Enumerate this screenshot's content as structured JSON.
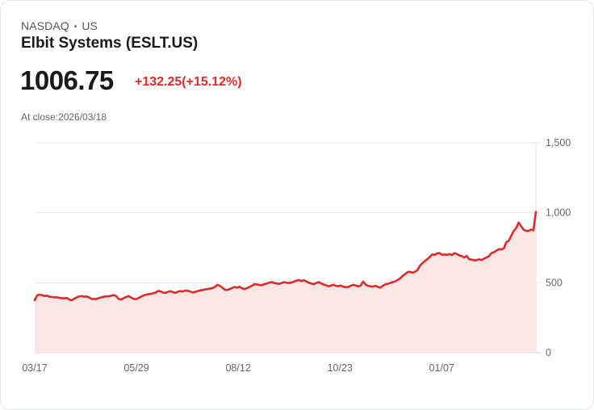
{
  "header": {
    "exchange": "NASDAQ",
    "separator": "•",
    "region": "US",
    "title": "Elbit Systems (ESLT.US)",
    "price": "1006.75",
    "change": "+132.25(+15.12%)",
    "close_label": "At close:2026/03/18"
  },
  "colors": {
    "line": "#d92c2c",
    "fill": "#fbe6e6",
    "grid": "#e6e6e6",
    "axis_text": "#666666",
    "change": "#d92c2c"
  },
  "chart_data": {
    "type": "area",
    "title": "Elbit Systems (ESLT.US)",
    "xlabel": "",
    "ylabel": "",
    "ylim": [
      0,
      1500
    ],
    "yticks": [
      0,
      500,
      1000,
      1500
    ],
    "ytick_labels": [
      "0",
      "500",
      "1,000",
      "1,500"
    ],
    "y_axis_position": "right",
    "xtick_labels": [
      "03/17",
      "05/29",
      "08/12",
      "10/23",
      "01/07"
    ],
    "xtick_positions": [
      0,
      0.203,
      0.406,
      0.609,
      0.812
    ],
    "grid": true,
    "legend": null,
    "series": [
      {
        "name": "ESLT.US",
        "values": [
          375,
          410,
          415,
          412,
          405,
          408,
          400,
          398,
          395,
          397,
          392,
          390,
          388,
          392,
          380,
          375,
          385,
          395,
          402,
          405,
          400,
          402,
          395,
          385,
          383,
          385,
          390,
          395,
          400,
          403,
          402,
          408,
          412,
          405,
          385,
          380,
          390,
          398,
          405,
          395,
          385,
          383,
          390,
          400,
          408,
          415,
          418,
          420,
          425,
          430,
          442,
          438,
          430,
          428,
          435,
          440,
          432,
          428,
          436,
          440,
          438,
          445,
          442,
          438,
          430,
          435,
          440,
          445,
          448,
          452,
          455,
          458,
          462,
          470,
          485,
          478,
          465,
          450,
          448,
          455,
          462,
          470,
          465,
          472,
          460,
          455,
          462,
          470,
          478,
          490,
          488,
          484,
          482,
          490,
          495,
          500,
          505,
          498,
          495,
          492,
          498,
          505,
          500,
          498,
          502,
          508,
          515,
          520,
          512,
          518,
          510,
          500,
          495,
          490,
          498,
          505,
          495,
          488,
          482,
          475,
          480,
          485,
          478,
          475,
          480,
          472,
          468,
          470,
          478,
          485,
          480,
          475,
          478,
          508,
          488,
          478,
          475,
          472,
          478,
          470,
          465,
          478,
          488,
          492,
          498,
          505,
          510,
          520,
          530,
          548,
          562,
          575,
          578,
          572,
          578,
          590,
          620,
          640,
          655,
          668,
          685,
          702,
          700,
          710,
          712,
          700,
          702,
          700,
          705,
          698,
          712,
          705,
          695,
          690,
          680,
          692,
          668,
          665,
          660,
          662,
          668,
          662,
          672,
          680,
          690,
          712,
          718,
          730,
          740,
          738,
          745,
          790,
          800,
          835,
          870,
          890,
          930,
          905,
          880,
          872,
          870,
          880,
          875,
          1006
        ]
      }
    ]
  }
}
